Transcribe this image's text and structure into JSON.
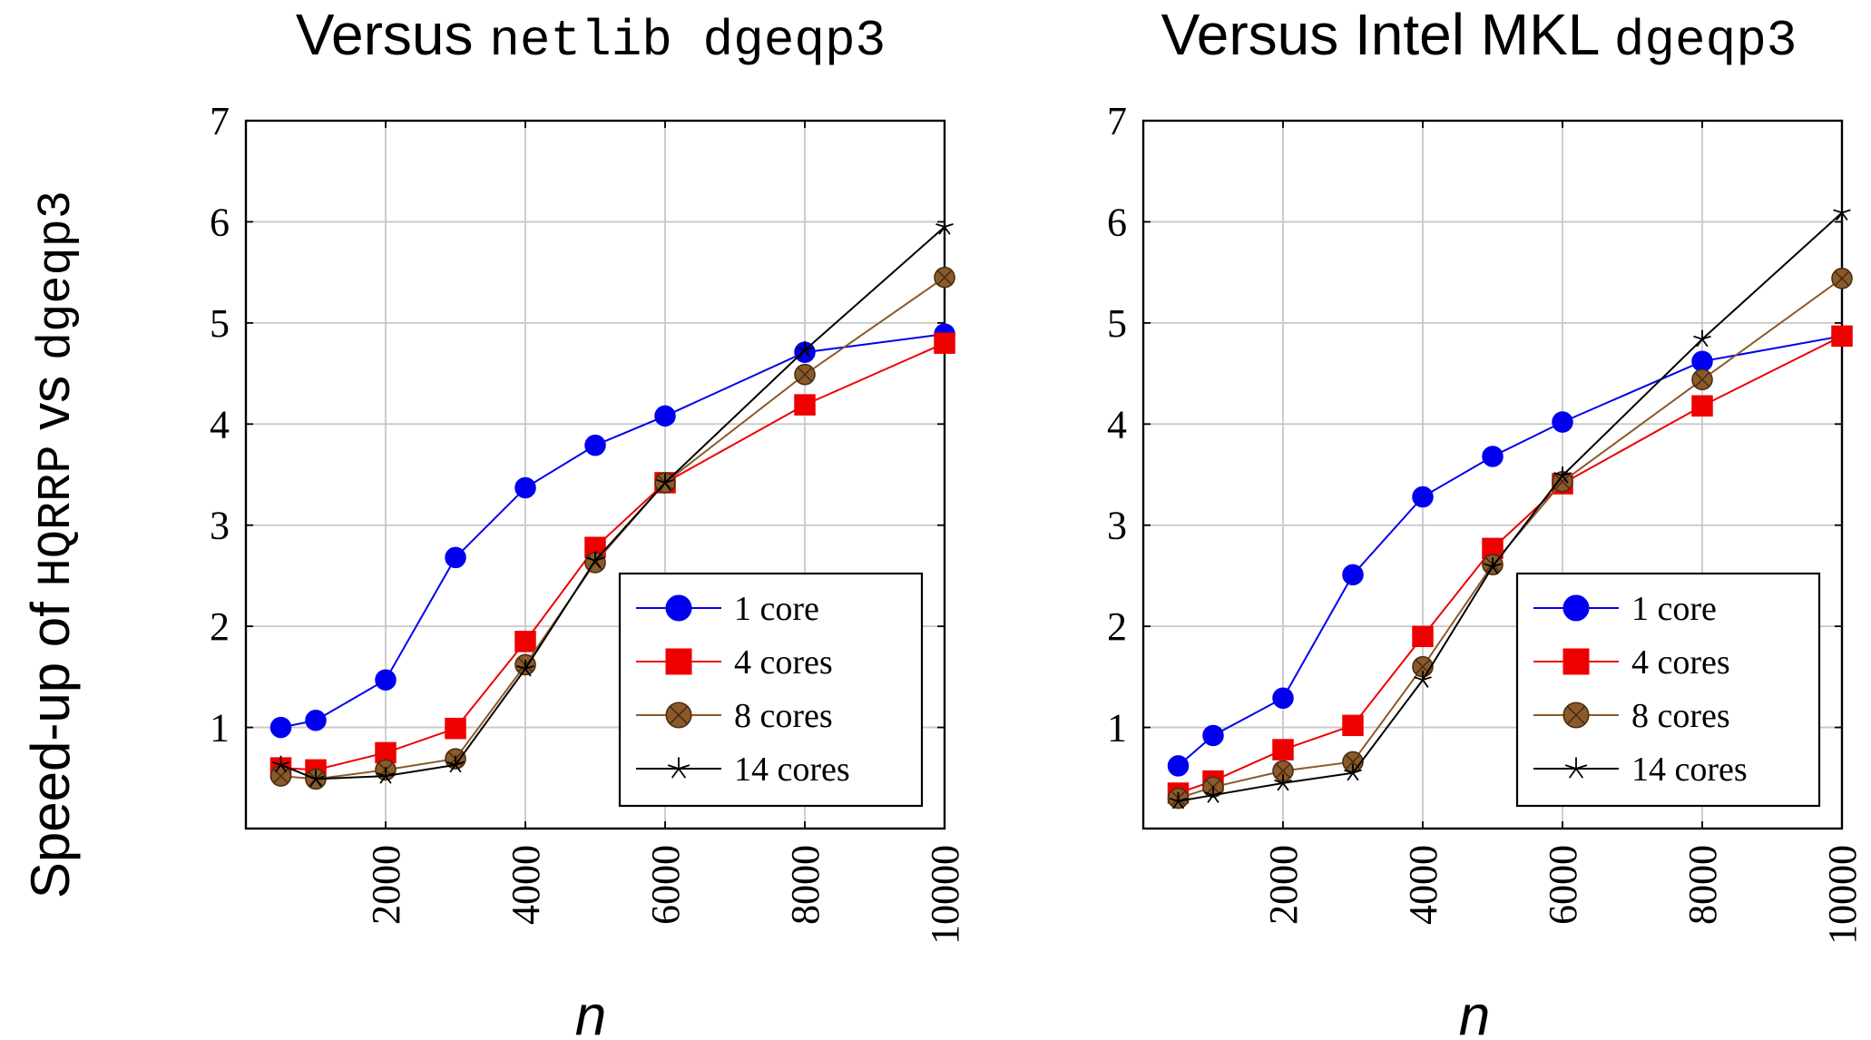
{
  "figure": {
    "y_label_parts": [
      "Speed-up of ",
      "HQRRP",
      " vs ",
      "dgeqp3"
    ]
  },
  "chart_data": [
    {
      "type": "line",
      "title_parts": [
        "Versus ",
        "netlib dgeqp3"
      ],
      "xlabel": "n",
      "ylabel": "Speed-up of HQRRP vs dgeqp3",
      "xlim": [
        0,
        10000
      ],
      "ylim": [
        0,
        7
      ],
      "x_ticks": [
        2000,
        4000,
        6000,
        8000,
        10000
      ],
      "y_ticks": [
        1,
        2,
        3,
        4,
        5,
        6,
        7
      ],
      "grid": true,
      "legend_position": "bottom-right",
      "x": [
        500,
        1000,
        2000,
        3000,
        4000,
        5000,
        6000,
        8000,
        10000
      ],
      "series": [
        {
          "name": "1 core",
          "color": "#0000ee",
          "marker": "circle",
          "values": [
            1.0,
            1.07,
            1.47,
            2.68,
            3.37,
            3.79,
            4.08,
            4.71,
            4.89
          ]
        },
        {
          "name": "4 cores",
          "color": "#ee0000",
          "marker": "square",
          "values": [
            0.6,
            0.58,
            0.75,
            0.99,
            1.85,
            2.78,
            3.42,
            4.19,
            4.8
          ]
        },
        {
          "name": "8 cores",
          "color": "#8b5a2b",
          "marker": "circle-x",
          "values": [
            0.52,
            0.49,
            0.58,
            0.69,
            1.62,
            2.63,
            3.42,
            4.49,
            5.45
          ]
        },
        {
          "name": "14 cores",
          "color": "#000000",
          "marker": "star",
          "values": [
            0.63,
            0.49,
            0.52,
            0.63,
            1.58,
            2.65,
            3.42,
            4.73,
            5.95
          ]
        }
      ]
    },
    {
      "type": "line",
      "title_parts": [
        "Versus Intel MKL ",
        "dgeqp3"
      ],
      "xlabel": "n",
      "ylabel": "Speed-up of HQRRP vs dgeqp3",
      "xlim": [
        0,
        10000
      ],
      "ylim": [
        0,
        7
      ],
      "x_ticks": [
        2000,
        4000,
        6000,
        8000,
        10000
      ],
      "y_ticks": [
        1,
        2,
        3,
        4,
        5,
        6,
        7
      ],
      "grid": true,
      "legend_position": "bottom-right",
      "x": [
        500,
        1000,
        2000,
        3000,
        4000,
        5000,
        6000,
        8000,
        10000
      ],
      "series": [
        {
          "name": "1 core",
          "color": "#0000ee",
          "marker": "circle",
          "values": [
            0.62,
            0.92,
            1.29,
            2.51,
            3.28,
            3.68,
            4.02,
            4.62,
            4.87
          ]
        },
        {
          "name": "4 cores",
          "color": "#ee0000",
          "marker": "square",
          "values": [
            0.35,
            0.47,
            0.78,
            1.02,
            1.9,
            2.77,
            3.41,
            4.18,
            4.87
          ]
        },
        {
          "name": "8 cores",
          "color": "#8b5a2b",
          "marker": "circle-x",
          "values": [
            0.3,
            0.41,
            0.57,
            0.66,
            1.6,
            2.61,
            3.43,
            4.44,
            5.44
          ]
        },
        {
          "name": "14 cores",
          "color": "#000000",
          "marker": "star",
          "values": [
            0.27,
            0.33,
            0.45,
            0.55,
            1.47,
            2.59,
            3.49,
            4.84,
            6.09
          ]
        }
      ]
    }
  ]
}
